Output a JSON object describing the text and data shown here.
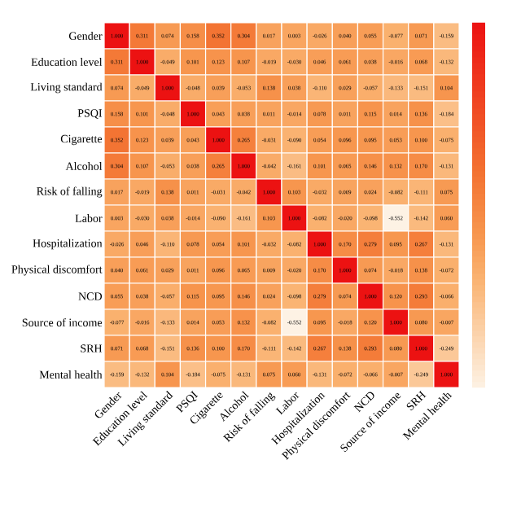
{
  "chart_data": {
    "type": "heatmap",
    "categories": [
      "Gender",
      "Education level",
      "Living standard",
      "PSQI",
      "Cigarette",
      "Alcohol",
      "Risk of falling",
      "Labor",
      "Hospitalization",
      "Physical discomfort",
      "NCD",
      "Source of income",
      "SRH",
      "Mental health"
    ],
    "y_categories": [
      "Gender",
      "Education level",
      "Living standard",
      "PSQI",
      "Cigarette",
      "Alcohol",
      "Risk of falling",
      "Labor",
      "Hospitalization",
      "Physical discomfort",
      "NCD",
      "Source of income",
      "SRH",
      "Mental health"
    ],
    "cells": [
      [
        1.0,
        0.311,
        0.074,
        0.158,
        0.352,
        0.304,
        0.017,
        0.003,
        -0.026,
        0.04,
        0.055,
        -0.077,
        0.071,
        -0.159
      ],
      [
        0.311,
        1.0,
        -0.049,
        0.101,
        0.123,
        0.107,
        -0.019,
        -0.03,
        0.046,
        0.061,
        0.038,
        -0.016,
        0.068,
        -0.132
      ],
      [
        0.074,
        -0.049,
        1.0,
        -0.048,
        0.039,
        -0.053,
        0.138,
        0.038,
        -0.11,
        0.029,
        -0.057,
        -0.133,
        -0.151,
        0.104
      ],
      [
        0.158,
        0.101,
        -0.048,
        1.0,
        0.043,
        0.038,
        0.011,
        -0.014,
        0.078,
        0.011,
        0.115,
        0.014,
        0.136,
        -0.184
      ],
      [
        0.352,
        0.123,
        0.039,
        0.043,
        1.0,
        0.265,
        -0.031,
        -0.09,
        0.054,
        0.096,
        0.095,
        0.053,
        0.1,
        -0.075
      ],
      [
        0.304,
        0.107,
        -0.053,
        0.038,
        0.265,
        1.0,
        -0.042,
        -0.161,
        0.101,
        0.065,
        0.146,
        0.132,
        0.17,
        -0.131
      ],
      [
        0.017,
        -0.019,
        0.138,
        0.011,
        -0.031,
        -0.042,
        1.0,
        0.103,
        -0.032,
        0.009,
        0.024,
        -0.082,
        -0.111,
        0.075
      ],
      [
        0.003,
        -0.03,
        0.038,
        -0.014,
        -0.09,
        -0.161,
        0.103,
        1.0,
        -0.082,
        -0.02,
        -0.098,
        -0.552,
        -0.142,
        0.06
      ],
      [
        -0.026,
        0.046,
        -0.11,
        0.078,
        0.054,
        0.101,
        -0.032,
        -0.082,
        1.0,
        0.17,
        0.279,
        0.095,
        0.267,
        -0.131
      ],
      [
        0.04,
        0.061,
        0.029,
        0.011,
        0.096,
        0.065,
        0.009,
        -0.02,
        0.17,
        1.0,
        0.074,
        -0.018,
        0.138,
        -0.072
      ],
      [
        0.055,
        0.038,
        -0.057,
        0.115,
        0.095,
        0.146,
        0.024,
        -0.098,
        0.279,
        0.074,
        1.0,
        0.12,
        0.293,
        -0.066
      ],
      [
        -0.077,
        -0.016,
        -0.133,
        0.014,
        0.053,
        0.132,
        -0.082,
        -0.552,
        0.095,
        -0.018,
        0.12,
        1.0,
        0.08,
        -0.007
      ],
      [
        0.071,
        0.068,
        -0.151,
        0.136,
        0.1,
        0.17,
        -0.111,
        -0.142,
        0.267,
        0.138,
        0.293,
        0.08,
        1.0,
        -0.249
      ],
      [
        -0.159,
        -0.132,
        0.104,
        -0.184,
        -0.075,
        -0.131,
        0.075,
        0.06,
        -0.131,
        -0.072,
        -0.066,
        -0.007,
        -0.249,
        1.0
      ]
    ],
    "cell_labels": [
      [
        "1.000",
        "0.311",
        "0.074",
        "0.158",
        "0.352",
        "0.304",
        "0.017",
        "0.003",
        "-0.026",
        "0.040",
        "0.055",
        "-0.077",
        "0.071",
        "-0.159"
      ],
      [
        "0.311",
        "1.000",
        "-0.049",
        "0.101",
        "0.123",
        "0.107",
        "-0.019",
        "-0.030",
        "0.046",
        "0.061",
        "0.038",
        "-0.016",
        "0.068",
        "-0.132"
      ],
      [
        "0.074",
        "-0.049",
        "1.000",
        "-0.048",
        "0.039",
        "-0.053",
        "0.138",
        "0.038",
        "-0.110",
        "0.029",
        "-0.057",
        "-0.133",
        "-0.151",
        "0.104"
      ],
      [
        "0.158",
        "0.101",
        "-0.048",
        "1.000",
        "0.043",
        "0.038",
        "0.011",
        "-0.014",
        "0.078",
        "0.011",
        "0.115",
        "0.014",
        "0.136",
        "-0.184"
      ],
      [
        "0.352",
        "0.123",
        "0.039",
        "0.043",
        "1.000",
        "0.265",
        "-0.031",
        "-0.090",
        "0.054",
        "0.096",
        "0.095",
        "0.053",
        "0.100",
        "-0.075"
      ],
      [
        "0.304",
        "0.107",
        "-0.053",
        "0.038",
        "0.265",
        "1.000",
        "-0.042",
        "-0.161",
        "0.101",
        "0.065",
        "0.146",
        "0.132",
        "0.170",
        "-0.131"
      ],
      [
        "0.017",
        "-0.019",
        "0.138",
        "0.011",
        "-0.031",
        "-0.042",
        "1.000",
        "0.103",
        "-0.032",
        "0.009",
        "0.024",
        "-0.082",
        "-0.111",
        "0.075"
      ],
      [
        "0.003",
        "-0.030",
        "0.038",
        "-0.014",
        "-0.090",
        "-0.161",
        "0.103",
        "1.000",
        "-0.082",
        "-0.020",
        "-0.098",
        "-0.552",
        "-0.142",
        "0.060"
      ],
      [
        "-0.026",
        "0.046",
        "-0.110",
        "0.078",
        "0.054",
        "0.101",
        "-0.032",
        "-0.082",
        "1.000",
        "0.170",
        "0.279",
        "0.095",
        "0.267",
        "-0.131"
      ],
      [
        "0.040",
        "0.061",
        "0.029",
        "0.011",
        "0.096",
        "0.065",
        "0.009",
        "-0.020",
        "0.170",
        "1.000",
        "0.074",
        "-0.018",
        "0.138",
        "-0.072"
      ],
      [
        "0.055",
        "0.038",
        "-0.057",
        "0.115",
        "0.095",
        "0.146",
        "0.024",
        "-0.098",
        "0.279",
        "0.074",
        "1.000",
        "0.120",
        "0.293",
        "-0.066"
      ],
      [
        "-0.077",
        "-0.016",
        "-0.133",
        "0.014",
        "0.053",
        "0.132",
        "-0.082",
        "-0.552",
        "0.095",
        "-0.018",
        "0.120",
        "1.000",
        "0.080",
        "-0.007"
      ],
      [
        "0.071",
        "0.068",
        "-0.151",
        "0.136",
        "0.100",
        "0.170",
        "-0.111",
        "-0.142",
        "0.267",
        "0.138",
        "0.293",
        "0.080",
        "1.000",
        "-0.249"
      ],
      [
        "-0.159",
        "-0.132",
        "0.104",
        "-0.184",
        "-0.075",
        "-0.131",
        "0.075",
        "0.060",
        "-0.131",
        "-0.072",
        "-0.066",
        "-0.007",
        "-0.249",
        "1.000"
      ]
    ]
  }
}
